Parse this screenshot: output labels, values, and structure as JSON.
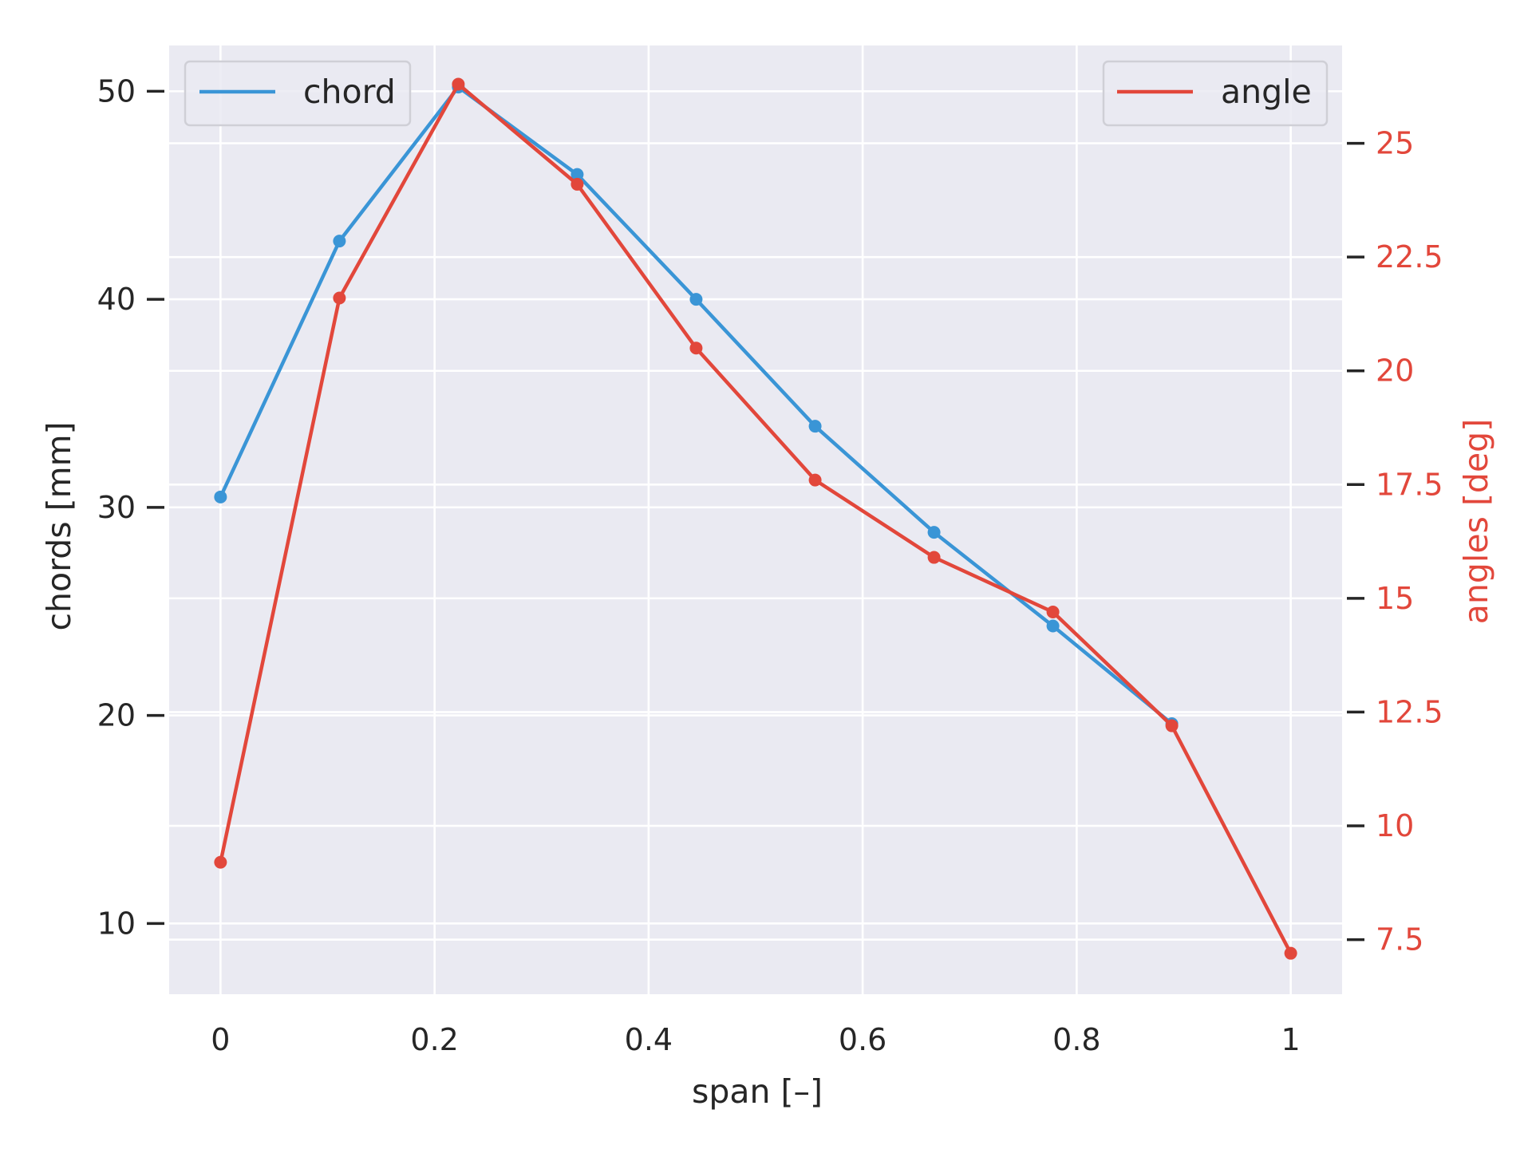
{
  "chart_data": {
    "type": "line",
    "xlabel": "span [–]",
    "ylabel_left": "chords [mm]",
    "ylabel_right": "angles [deg]",
    "xlim": [
      -0.048,
      1.048
    ],
    "ylim_left": [
      6.6,
      52.2
    ],
    "ylim_right": [
      6.3,
      27.15
    ],
    "x_ticks": [
      0,
      0.2,
      0.4,
      0.6,
      0.8,
      1
    ],
    "x_tick_labels": [
      "0",
      "0.2",
      "0.4",
      "0.6",
      "0.8",
      "1"
    ],
    "left_ticks": [
      10,
      20,
      30,
      40,
      50
    ],
    "left_tick_labels": [
      "10",
      "20",
      "30",
      "40",
      "50"
    ],
    "right_ticks": [
      7.5,
      10,
      12.5,
      15,
      17.5,
      20,
      22.5,
      25
    ],
    "right_tick_labels": [
      "7.5",
      "10",
      "12.5",
      "15",
      "17.5",
      "20",
      "22.5",
      "25"
    ],
    "grid": true,
    "series": [
      {
        "name": "chord",
        "axis": "left",
        "color": "#3a95d6",
        "x": [
          0,
          0.1111,
          0.2222,
          0.3333,
          0.4444,
          0.5556,
          0.6667,
          0.7778,
          0.8889
        ],
        "values": [
          30.5,
          42.8,
          50.2,
          46.0,
          40.0,
          33.9,
          28.8,
          24.3,
          19.6
        ],
        "legend_position": "upper-left"
      },
      {
        "name": "angle",
        "axis": "right",
        "color": "#e2473b",
        "x": [
          0,
          0.1111,
          0.2222,
          0.3333,
          0.4444,
          0.5556,
          0.6667,
          0.7778,
          0.8889,
          1.0
        ],
        "values": [
          9.2,
          21.6,
          26.3,
          24.1,
          20.5,
          17.6,
          15.9,
          14.7,
          12.2,
          7.2
        ],
        "legend_position": "upper-right"
      }
    ],
    "colors": {
      "plot_background": "#eaeaf2",
      "grid": "#ffffff",
      "text": "#262626",
      "right_axis_text": "#e2473b"
    }
  }
}
